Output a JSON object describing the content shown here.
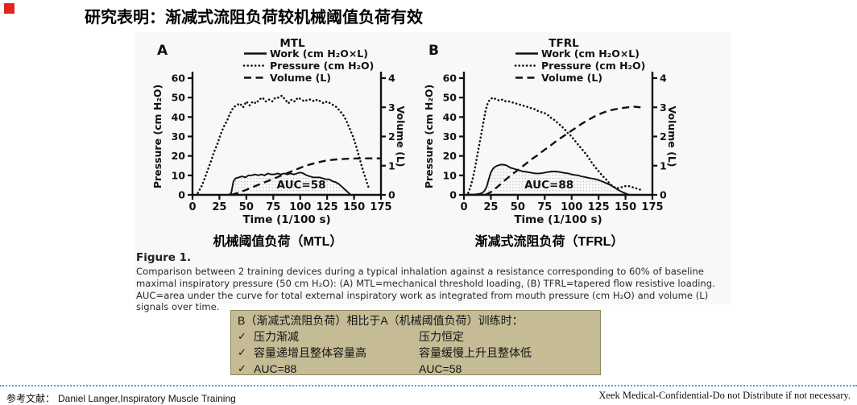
{
  "colors": {
    "accent_red": "#e0261c",
    "figure_bg": "#f8f8f6",
    "box_bg": "#c5bb95",
    "box_border": "#8f865f",
    "separator_blue": "#5b9bd5",
    "chart_ink": "#111111"
  },
  "header": {
    "title": "研究表明：渐减式流阻负荷较机械阈值负荷有效"
  },
  "figure": {
    "chart_a_label": "机械阈值负荷（MTL）",
    "chart_b_label": "渐减式流阻负荷（TFRL）",
    "caption_title": "Figure 1.",
    "caption_body": "Comparison between 2 training devices during a typical inhalation against a resistance corresponding to 60% of baseline maximal inspiratory pressure (50 cm H₂O): (A) MTL=mechanical threshold loading, (B) TFRL=tapered flow resistive loading. AUC=area under the curve for total external inspiratory work as integrated from mouth pressure (cm H₂O) and volume (L) signals over time."
  },
  "chart_data": [
    {
      "type": "line",
      "panel": "A",
      "title": "MTL",
      "xlabel": "Time (1/100 s)",
      "ylabel_left": "Pressure (cm H₂O)",
      "ylabel_right": "Volume (L)",
      "xlim": [
        0,
        175
      ],
      "xticks": [
        0,
        25,
        50,
        75,
        100,
        125,
        150,
        175
      ],
      "ylim_left": [
        0,
        60
      ],
      "yticks_left": [
        0,
        10,
        20,
        30,
        40,
        50,
        60
      ],
      "ylim_right": [
        0,
        4
      ],
      "yticks_right": [
        0,
        1,
        2,
        3,
        4
      ],
      "auc_label": "AUC=58",
      "auc_label_pos": [
        101,
        3.3
      ],
      "series": [
        {
          "name": "Work (cm H₂O×L)",
          "style": "solid",
          "axis": "left",
          "fill": "stipple",
          "points": [
            [
              0,
              0
            ],
            [
              34,
              0
            ],
            [
              36,
              1
            ],
            [
              37,
              4
            ],
            [
              38,
              7
            ],
            [
              40,
              8.5
            ],
            [
              43,
              9
            ],
            [
              46,
              9.5
            ],
            [
              49,
              9
            ],
            [
              52,
              10
            ],
            [
              55,
              10
            ],
            [
              58,
              10.5
            ],
            [
              61,
              10
            ],
            [
              64,
              10.5
            ],
            [
              67,
              10
            ],
            [
              70,
              11
            ],
            [
              73,
              10.5
            ],
            [
              76,
              10.5
            ],
            [
              79,
              11
            ],
            [
              82,
              10.5
            ],
            [
              85,
              11
            ],
            [
              88,
              10.5
            ],
            [
              91,
              11
            ],
            [
              94,
              10.5
            ],
            [
              97,
              11
            ],
            [
              100,
              11.5
            ],
            [
              103,
              11
            ],
            [
              106,
              10
            ],
            [
              109,
              9.5
            ],
            [
              112,
              9
            ],
            [
              115,
              9
            ],
            [
              118,
              9
            ],
            [
              121,
              8.5
            ],
            [
              124,
              8
            ],
            [
              127,
              8
            ],
            [
              130,
              7
            ],
            [
              133,
              6.5
            ],
            [
              136,
              5.5
            ],
            [
              139,
              4
            ],
            [
              142,
              2.5
            ],
            [
              145,
              1
            ],
            [
              147,
              0
            ]
          ]
        },
        {
          "name": "Pressure (cm H₂O)",
          "style": "dotted",
          "axis": "left",
          "points": [
            [
              5,
              1
            ],
            [
              9,
              5
            ],
            [
              13,
              11
            ],
            [
              17,
              17
            ],
            [
              20,
              22
            ],
            [
              23,
              26
            ],
            [
              26,
              31
            ],
            [
              29,
              35
            ],
            [
              32,
              38
            ],
            [
              35,
              42
            ],
            [
              38,
              45
            ],
            [
              41,
              46
            ],
            [
              44,
              47
            ],
            [
              47,
              45
            ],
            [
              50,
              48
            ],
            [
              53,
              46
            ],
            [
              56,
              48
            ],
            [
              59,
              47
            ],
            [
              62,
              49
            ],
            [
              65,
              50
            ],
            [
              68,
              48
            ],
            [
              71,
              49
            ],
            [
              74,
              48
            ],
            [
              77,
              50
            ],
            [
              80,
              50
            ],
            [
              83,
              51
            ],
            [
              86,
              49
            ],
            [
              89,
              47
            ],
            [
              92,
              49
            ],
            [
              95,
              48
            ],
            [
              98,
              50
            ],
            [
              101,
              49
            ],
            [
              104,
              48
            ],
            [
              107,
              49
            ],
            [
              110,
              49
            ],
            [
              113,
              48
            ],
            [
              116,
              49
            ],
            [
              119,
              48
            ],
            [
              122,
              47
            ],
            [
              125,
              48
            ],
            [
              128,
              47
            ],
            [
              131,
              46
            ],
            [
              134,
              45
            ],
            [
              137,
              43
            ],
            [
              140,
              41
            ],
            [
              143,
              38
            ],
            [
              146,
              34
            ],
            [
              149,
              30
            ],
            [
              152,
              25
            ],
            [
              155,
              19
            ],
            [
              158,
              13
            ],
            [
              161,
              8
            ],
            [
              164,
              3
            ]
          ]
        },
        {
          "name": "Volume (L)",
          "style": "dashed",
          "axis": "right",
          "points": [
            [
              36,
              0
            ],
            [
              45,
              0.1
            ],
            [
              55,
              0.25
            ],
            [
              65,
              0.4
            ],
            [
              75,
              0.55
            ],
            [
              85,
              0.7
            ],
            [
              95,
              0.85
            ],
            [
              105,
              1.0
            ],
            [
              115,
              1.1
            ],
            [
              125,
              1.18
            ],
            [
              135,
              1.22
            ],
            [
              145,
              1.24
            ],
            [
              155,
              1.25
            ],
            [
              175,
              1.25
            ]
          ]
        }
      ]
    },
    {
      "type": "line",
      "panel": "B",
      "title": "TFRL",
      "xlabel": "Time (1/100 s)",
      "ylabel_left": "Pressure (cm H₂O)",
      "ylabel_right": "Volume (L)",
      "xlim": [
        0,
        175
      ],
      "xticks": [
        0,
        25,
        50,
        75,
        100,
        125,
        150,
        175
      ],
      "ylim_left": [
        0,
        60
      ],
      "yticks_left": [
        0,
        10,
        20,
        30,
        40,
        50,
        60
      ],
      "ylim_right": [
        0,
        4
      ],
      "yticks_right": [
        0,
        1,
        2,
        3,
        4
      ],
      "auc_label": "AUC=88",
      "auc_label_pos": [
        79,
        3.3
      ],
      "series": [
        {
          "name": "Work (cm H₂O×L)",
          "style": "solid",
          "axis": "left",
          "fill": "stipple",
          "points": [
            [
              0,
              0
            ],
            [
              10,
              0.2
            ],
            [
              14,
              0.5
            ],
            [
              17,
              1
            ],
            [
              19,
              2
            ],
            [
              21,
              4
            ],
            [
              23,
              8
            ],
            [
              25,
              11.5
            ],
            [
              27,
              13.5
            ],
            [
              29,
              14.5
            ],
            [
              31,
              15
            ],
            [
              34,
              15.5
            ],
            [
              37,
              15.5
            ],
            [
              40,
              15
            ],
            [
              43,
              14
            ],
            [
              46,
              13.5
            ],
            [
              49,
              13
            ],
            [
              52,
              12.5
            ],
            [
              55,
              12
            ],
            [
              58,
              11.8
            ],
            [
              61,
              11.5
            ],
            [
              64,
              11.2
            ],
            [
              67,
              11
            ],
            [
              70,
              11
            ],
            [
              73,
              11.2
            ],
            [
              76,
              11.5
            ],
            [
              79,
              11.8
            ],
            [
              82,
              12
            ],
            [
              85,
              12
            ],
            [
              88,
              11.8
            ],
            [
              91,
              11.5
            ],
            [
              94,
              11.2
            ],
            [
              97,
              11
            ],
            [
              100,
              10.5
            ],
            [
              103,
              10.2
            ],
            [
              106,
              10
            ],
            [
              109,
              9.5
            ],
            [
              112,
              9.2
            ],
            [
              115,
              8.8
            ],
            [
              118,
              8.5
            ],
            [
              121,
              8.2
            ],
            [
              124,
              7.8
            ],
            [
              127,
              7.2
            ],
            [
              130,
              6.5
            ],
            [
              133,
              5.8
            ],
            [
              136,
              5
            ],
            [
              139,
              4
            ],
            [
              142,
              3
            ],
            [
              145,
              2
            ],
            [
              148,
              1.2
            ],
            [
              151,
              0.5
            ],
            [
              154,
              0
            ]
          ]
        },
        {
          "name": "Pressure (cm H₂O)",
          "style": "dotted",
          "axis": "left",
          "points": [
            [
              4,
              1
            ],
            [
              6,
              4
            ],
            [
              8,
              8
            ],
            [
              10,
              13
            ],
            [
              12,
              19
            ],
            [
              14,
              25
            ],
            [
              16,
              31
            ],
            [
              18,
              37
            ],
            [
              20,
              43
            ],
            [
              22,
              47
            ],
            [
              24,
              49
            ],
            [
              27,
              50
            ],
            [
              30,
              49
            ],
            [
              33,
              48.5
            ],
            [
              36,
              49
            ],
            [
              39,
              48
            ],
            [
              42,
              48
            ],
            [
              45,
              47.5
            ],
            [
              48,
              47
            ],
            [
              51,
              46.5
            ],
            [
              54,
              46
            ],
            [
              57,
              45.5
            ],
            [
              60,
              45
            ],
            [
              63,
              44.5
            ],
            [
              66,
              44
            ],
            [
              69,
              43
            ],
            [
              72,
              42.5
            ],
            [
              75,
              42
            ],
            [
              78,
              41
            ],
            [
              81,
              39.5
            ],
            [
              84,
              38.5
            ],
            [
              87,
              37
            ],
            [
              90,
              35.5
            ],
            [
              93,
              34
            ],
            [
              96,
              32
            ],
            [
              99,
              30.5
            ],
            [
              102,
              28.5
            ],
            [
              105,
              26.5
            ],
            [
              108,
              24.5
            ],
            [
              111,
              22.5
            ],
            [
              114,
              20.5
            ],
            [
              117,
              18
            ],
            [
              120,
              15.5
            ],
            [
              123,
              13.5
            ],
            [
              126,
              11.5
            ],
            [
              129,
              9.5
            ],
            [
              132,
              8
            ],
            [
              135,
              6
            ],
            [
              138,
              4.5
            ],
            [
              141,
              3.5
            ],
            [
              144,
              3.5
            ],
            [
              147,
              4
            ],
            [
              150,
              4.5
            ],
            [
              153,
              4.5
            ],
            [
              156,
              4
            ],
            [
              159,
              3.5
            ],
            [
              162,
              3
            ],
            [
              165,
              2.5
            ]
          ]
        },
        {
          "name": "Volume (L)",
          "style": "dashed",
          "axis": "right",
          "points": [
            [
              20,
              0
            ],
            [
              26,
              0.12
            ],
            [
              32,
              0.3
            ],
            [
              38,
              0.5
            ],
            [
              44,
              0.68
            ],
            [
              50,
              0.85
            ],
            [
              56,
              1.02
            ],
            [
              62,
              1.2
            ],
            [
              68,
              1.35
            ],
            [
              74,
              1.52
            ],
            [
              80,
              1.68
            ],
            [
              86,
              1.85
            ],
            [
              92,
              2.0
            ],
            [
              98,
              2.15
            ],
            [
              104,
              2.3
            ],
            [
              110,
              2.45
            ],
            [
              116,
              2.58
            ],
            [
              122,
              2.7
            ],
            [
              128,
              2.8
            ],
            [
              134,
              2.88
            ],
            [
              140,
              2.93
            ],
            [
              146,
              2.97
            ],
            [
              152,
              3.0
            ],
            [
              158,
              3.02
            ],
            [
              164,
              3.0
            ]
          ]
        }
      ]
    }
  ],
  "comparison_box": {
    "heading": "B（渐减式流阻负荷）相比于A（机械阈值负荷）训练时：",
    "check_symbol": "✓",
    "rows": [
      {
        "left": "压力渐减",
        "right": "压力恒定"
      },
      {
        "left": "容量递增且整体容量高",
        "right": "容量缓慢上升且整体低"
      },
      {
        "left": "AUC=88",
        "right": "AUC=58"
      }
    ]
  },
  "footer": {
    "reference_label": "参考文献：",
    "reference_text": "Daniel Langer,Inspiratory Muscle Training",
    "confidential_text": "Xeek Medical-Confidential-Do not Distribute if not necessary."
  }
}
